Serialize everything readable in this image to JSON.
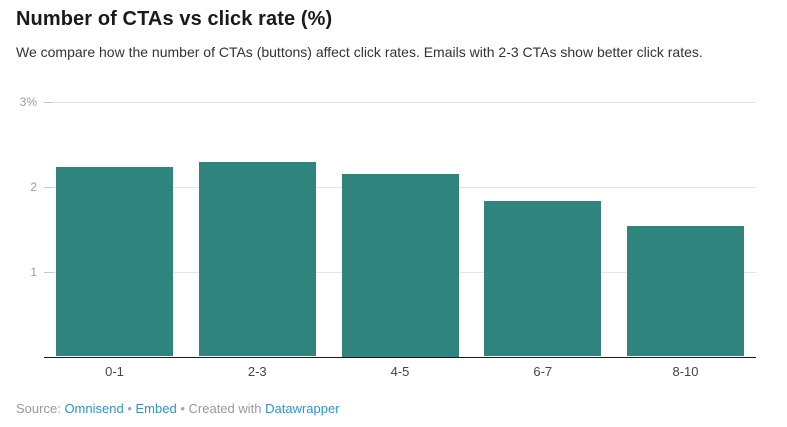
{
  "header": {
    "title": "Number of CTAs vs click rate (%)",
    "description": "We compare how the number of CTAs (buttons) affect click rates. Emails with 2-3 CTAs show better click rates."
  },
  "chart_data": {
    "type": "bar",
    "categories": [
      "0-1",
      "2-3",
      "4-5",
      "6-7",
      "8-10"
    ],
    "values": [
      2.23,
      2.29,
      2.15,
      1.83,
      1.53
    ],
    "title": "Number of CTAs vs click rate (%)",
    "xlabel": "",
    "ylabel": "",
    "ylim": [
      0,
      3
    ],
    "yticks": [
      {
        "value": 1,
        "label": "1"
      },
      {
        "value": 2,
        "label": "2"
      },
      {
        "value": 3,
        "label": "3%"
      }
    ],
    "grid": true,
    "legend": "none",
    "bar_color": "#2F847E"
  },
  "footer": {
    "source_label": "Source:",
    "source_link": "Omnisend",
    "separator": "•",
    "embed_link": "Embed",
    "created_with": "Created with",
    "tool_link": "Datawrapper"
  },
  "colors": {
    "bar": "#2F847E",
    "link": "#2596D2",
    "grid": "#E4E4E4",
    "tick": "#C8C8C8",
    "axis_label": "#9B9B9B",
    "baseline": "#1A1A1A"
  }
}
